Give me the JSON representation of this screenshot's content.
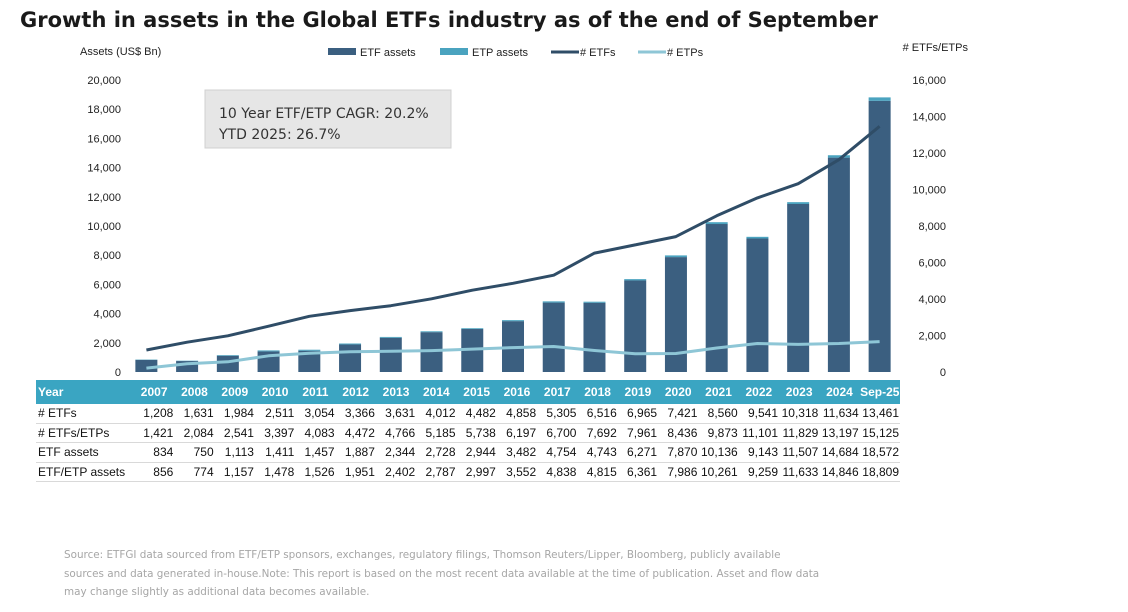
{
  "title": "Growth in assets in the Global ETFs industry as of the end of September",
  "chart_data": {
    "type": "bar",
    "title": "Growth in assets in the Global ETFs industry as of the end of September",
    "categories": [
      "2007",
      "2008",
      "2009",
      "2010",
      "2011",
      "2012",
      "2013",
      "2014",
      "2015",
      "2016",
      "2017",
      "2018",
      "2019",
      "2020",
      "2021",
      "2022",
      "2023",
      "2024",
      "Sep-25"
    ],
    "left_axis": {
      "label": "Assets (US$ Bn)",
      "ylim": [
        0,
        20000
      ],
      "ticks": [
        0,
        2000,
        4000,
        6000,
        8000,
        10000,
        12000,
        14000,
        16000,
        18000,
        20000
      ],
      "tick_labels": [
        "0",
        "2,000",
        "4,000",
        "6,000",
        "8,000",
        "10,000",
        "12,000",
        "14,000",
        "16,000",
        "18,000",
        "20,000"
      ]
    },
    "right_axis": {
      "label": "# ETFs/ETPs",
      "ylim": [
        0,
        16000
      ],
      "ticks": [
        0,
        2000,
        4000,
        6000,
        8000,
        10000,
        12000,
        14000,
        16000
      ],
      "tick_labels": [
        "0",
        "2,000",
        "4,000",
        "6,000",
        "8,000",
        "10,000",
        "12,000",
        "14,000",
        "16,000"
      ]
    },
    "series": [
      {
        "name": "ETF assets",
        "kind": "bar",
        "axis": "left",
        "color": "#3b5f80",
        "values": [
          834,
          750,
          1113,
          1411,
          1457,
          1887,
          2344,
          2728,
          2944,
          3482,
          4754,
          4743,
          6271,
          7870,
          10136,
          9143,
          11507,
          14684,
          18572
        ]
      },
      {
        "name": "ETP assets",
        "kind": "bar",
        "axis": "left",
        "color": "#4aa3bf",
        "values": [
          22,
          24,
          44,
          67,
          69,
          64,
          58,
          59,
          53,
          70,
          84,
          72,
          90,
          116,
          125,
          116,
          126,
          162,
          237
        ]
      },
      {
        "name": "# ETFs",
        "kind": "line",
        "axis": "right",
        "color": "#2f4d67",
        "values": [
          1208,
          1631,
          1984,
          2511,
          3054,
          3366,
          3631,
          4012,
          4482,
          4858,
          5305,
          6516,
          6965,
          7421,
          8560,
          9541,
          10318,
          11634,
          13461
        ]
      },
      {
        "name": "# ETPs",
        "kind": "line",
        "axis": "right",
        "color": "#8ec6d6",
        "values": [
          213,
          453,
          557,
          886,
          1029,
          1106,
          1135,
          1173,
          1256,
          1339,
          1395,
          1176,
          996,
          1015,
          1313,
          1560,
          1511,
          1563,
          1664
        ]
      }
    ],
    "legend": [
      "ETF assets",
      "ETP assets",
      "# ETFs",
      "# ETPs"
    ],
    "legend_position": "top",
    "annotation": [
      "10 Year ETF/ETP CAGR: 20.2%",
      "YTD 2025: 26.7%"
    ],
    "table": {
      "header": "Year",
      "years": [
        "2007",
        "2008",
        "2009",
        "2010",
        "2011",
        "2012",
        "2013",
        "2014",
        "2015",
        "2016",
        "2017",
        "2018",
        "2019",
        "2020",
        "2021",
        "2022",
        "2023",
        "2024",
        "Sep-25"
      ],
      "rows": [
        {
          "label": "# ETFs",
          "values": [
            "1,208",
            "1,631",
            "1,984",
            "2,511",
            "3,054",
            "3,366",
            "3,631",
            "4,012",
            "4,482",
            "4,858",
            "5,305",
            "6,516",
            "6,965",
            "7,421",
            "8,560",
            "9,541",
            "10,318",
            "11,634",
            "13,461"
          ]
        },
        {
          "label": "# ETFs/ETPs",
          "values": [
            "1,421",
            "2,084",
            "2,541",
            "3,397",
            "4,083",
            "4,472",
            "4,766",
            "5,185",
            "5,738",
            "6,197",
            "6,700",
            "7,692",
            "7,961",
            "8,436",
            "9,873",
            "11,101",
            "11,829",
            "13,197",
            "15,125"
          ]
        },
        {
          "label": "ETF assets",
          "values": [
            "834",
            "750",
            "1,113",
            "1,411",
            "1,457",
            "1,887",
            "2,344",
            "2,728",
            "2,944",
            "3,482",
            "4,754",
            "4,743",
            "6,271",
            "7,870",
            "10,136",
            "9,143",
            "11,507",
            "14,684",
            "18,572"
          ]
        },
        {
          "label": "ETF/ETP assets",
          "values": [
            "856",
            "774",
            "1,157",
            "1,478",
            "1,526",
            "1,951",
            "2,402",
            "2,787",
            "2,997",
            "3,552",
            "4,838",
            "4,815",
            "6,361",
            "7,986",
            "10,261",
            "9,259",
            "11,633",
            "14,846",
            "18,809"
          ]
        }
      ]
    }
  },
  "source": [
    "Source: ETFGI data sourced from ETF/ETP sponsors, exchanges, regulatory filings, Thomson Reuters/Lipper, Bloomberg, publicly available",
    "sources and data generated in-house.Note: This report is based on the most recent data available at the time of publication. Asset and flow data",
    "may change slightly as additional data becomes available."
  ]
}
